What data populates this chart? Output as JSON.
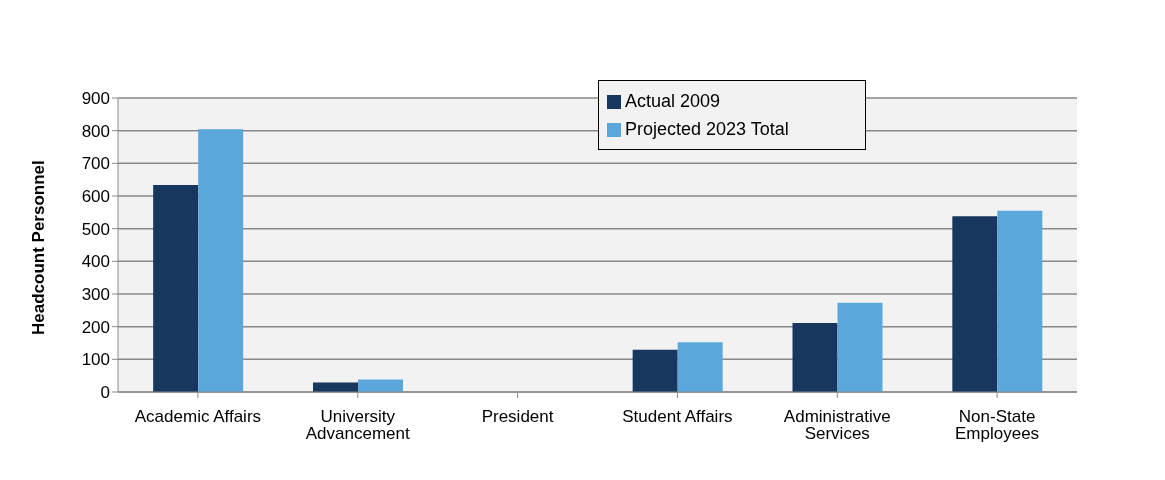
{
  "chart_data": {
    "type": "bar",
    "ylabel": "Headcount Personnel",
    "categories": [
      "Academic Affairs",
      "University Advancement",
      "President",
      "Student Affairs",
      "Administrative Services",
      "Non-State Employees"
    ],
    "series": [
      {
        "name": "Actual 2009",
        "color": "#17375e",
        "values": [
          634,
          29,
          null,
          129,
          211,
          538
        ]
      },
      {
        "name": "Projected 2023 Total",
        "color": "#5ba7dc",
        "values": [
          804,
          38,
          null,
          152,
          273,
          555
        ]
      }
    ],
    "ylim": [
      0,
      900
    ],
    "yticks": [
      0,
      100,
      200,
      300,
      400,
      500,
      600,
      700,
      800,
      900
    ],
    "grid": "y",
    "legend": "top"
  }
}
